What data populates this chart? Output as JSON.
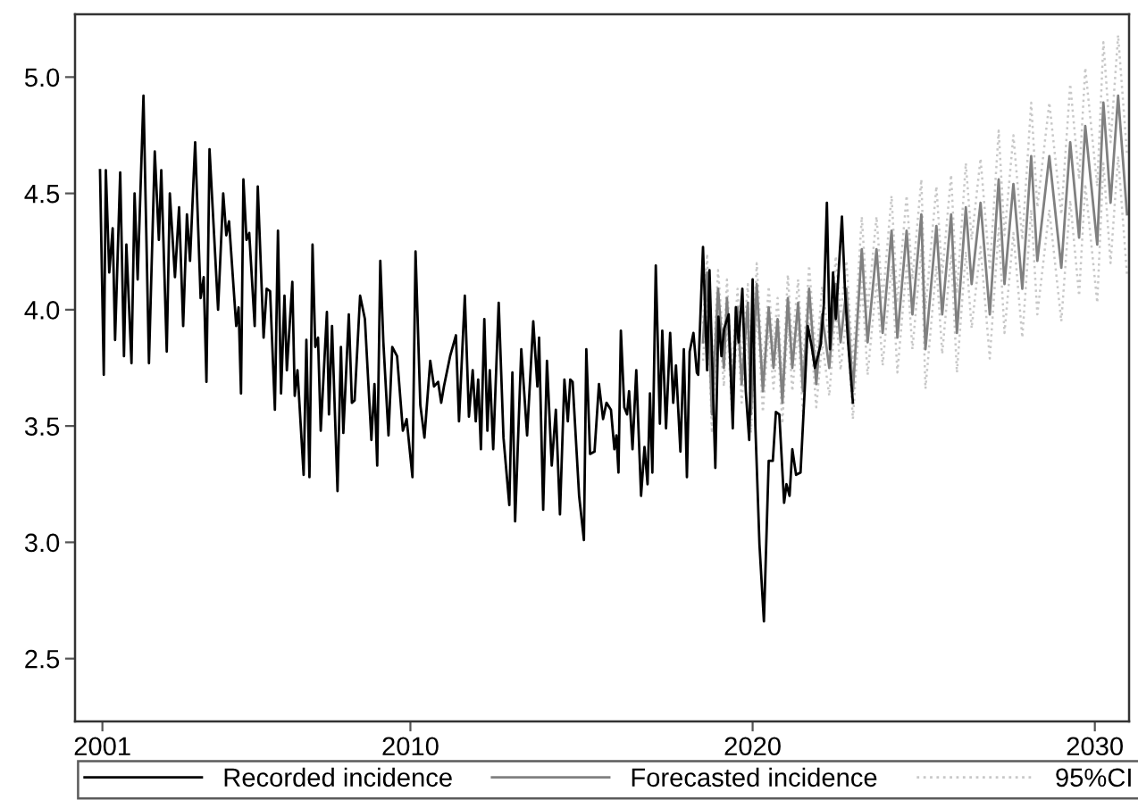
{
  "chart_data": {
    "type": "line",
    "xlim": [
      2000.2,
      2031.0
    ],
    "ylim": [
      2.23,
      5.27
    ],
    "xticks": [
      2001,
      2010,
      2020,
      2030
    ],
    "yticks": [
      {
        "value": 2.5,
        "label": "2.5"
      },
      {
        "value": 3,
        "label": "3.0"
      },
      {
        "value": 3.5,
        "label": "3.5"
      },
      {
        "value": 4,
        "label": "4.0"
      },
      {
        "value": 4.5,
        "label": "4.5"
      },
      {
        "value": 5,
        "label": "5.0"
      }
    ],
    "grid": false,
    "legend": "bottom",
    "marker": "none",
    "series": [
      {
        "name": "Recorded incidence",
        "color": "#000000",
        "line_style": "solid",
        "x": [
          2000.93,
          2001.04,
          2001.1,
          2001.2,
          2001.3,
          2001.37,
          2001.52,
          2001.63,
          2001.7,
          2001.85,
          2001.94,
          2002.03,
          2002.2,
          2002.36,
          2002.53,
          2002.65,
          2002.72,
          2002.88,
          2002.97,
          2003.12,
          2003.24,
          2003.36,
          2003.47,
          2003.56,
          2003.71,
          2003.87,
          2003.96,
          2004.04,
          2004.13,
          2004.38,
          2004.53,
          2004.62,
          2004.7,
          2004.91,
          2004.98,
          2005.05,
          2005.12,
          2005.21,
          2005.29,
          2005.45,
          2005.54,
          2005.71,
          2005.8,
          2005.9,
          2006.04,
          2006.13,
          2006.22,
          2006.32,
          2006.39,
          2006.55,
          2006.62,
          2006.7,
          2006.88,
          2006.96,
          2007.05,
          2007.14,
          2007.22,
          2007.3,
          2007.38,
          2007.56,
          2007.62,
          2007.71,
          2007.87,
          2007.97,
          2008.04,
          2008.2,
          2008.29,
          2008.37,
          2008.53,
          2008.67,
          2008.86,
          2008.95,
          2009.03,
          2009.12,
          2009.21,
          2009.36,
          2009.47,
          2009.61,
          2009.78,
          2009.89,
          2010.06,
          2010.15,
          2010.29,
          2010.41,
          2010.58,
          2010.69,
          2010.81,
          2010.9,
          2010.98,
          2011.16,
          2011.33,
          2011.42,
          2011.59,
          2011.71,
          2011.82,
          2011.91,
          2011.98,
          2012.06,
          2012.16,
          2012.25,
          2012.32,
          2012.42,
          2012.58,
          2012.72,
          2012.89,
          2012.98,
          2013.06,
          2013.24,
          2013.41,
          2013.59,
          2013.71,
          2013.76,
          2013.88,
          2013.99,
          2014.13,
          2014.25,
          2014.37,
          2014.5,
          2014.6,
          2014.67,
          2014.74,
          2014.93,
          2015.07,
          2015.14,
          2015.25,
          2015.38,
          2015.51,
          2015.63,
          2015.73,
          2015.86,
          2015.96,
          2016.02,
          2016.08,
          2016.15,
          2016.25,
          2016.33,
          2016.39,
          2016.49,
          2016.6,
          2016.74,
          2016.84,
          2016.93,
          2017.0,
          2017.07,
          2017.17,
          2017.29,
          2017.36,
          2017.47,
          2017.59,
          2017.68,
          2017.76,
          2017.89,
          2017.99,
          2018.08,
          2018.16,
          2018.27,
          2018.37,
          2018.41,
          2018.55,
          2018.67,
          2018.74,
          2018.91,
          2019.0,
          2019.09,
          2019.17,
          2019.3,
          2019.42,
          2019.51,
          2019.59,
          2019.7,
          2019.8,
          2019.9,
          2020.0,
          2020.08,
          2020.2,
          2020.33,
          2020.47,
          2020.59,
          2020.68,
          2020.78,
          2020.92,
          2020.99,
          2021.08,
          2021.16,
          2021.27,
          2021.4,
          2021.52,
          2021.61,
          2021.73,
          2021.82,
          2021.99,
          2022.08,
          2022.17,
          2022.26,
          2022.35,
          2022.43,
          2022.61,
          2022.7,
          2022.79,
          2022.93
        ],
        "values": [
          4.6,
          3.72,
          4.6,
          4.16,
          4.35,
          3.87,
          4.59,
          3.8,
          4.28,
          3.77,
          4.5,
          4.13,
          4.92,
          3.77,
          4.68,
          4.3,
          4.6,
          3.82,
          4.5,
          4.14,
          4.44,
          3.93,
          4.41,
          4.21,
          4.72,
          4.05,
          4.14,
          3.69,
          4.69,
          4.0,
          4.5,
          4.32,
          4.38,
          3.93,
          4.01,
          3.64,
          4.56,
          4.3,
          4.33,
          3.93,
          4.53,
          3.88,
          4.09,
          4.08,
          3.57,
          4.34,
          3.64,
          4.06,
          3.74,
          4.12,
          3.63,
          3.74,
          3.29,
          3.87,
          3.28,
          4.28,
          3.84,
          3.88,
          3.48,
          3.99,
          3.55,
          3.93,
          3.22,
          3.84,
          3.47,
          3.98,
          3.6,
          3.61,
          4.06,
          3.96,
          3.44,
          3.68,
          3.33,
          4.21,
          3.86,
          3.46,
          3.84,
          3.8,
          3.48,
          3.53,
          3.28,
          4.25,
          3.59,
          3.45,
          3.78,
          3.67,
          3.69,
          3.6,
          3.67,
          3.8,
          3.89,
          3.52,
          4.06,
          3.54,
          3.74,
          3.52,
          3.7,
          3.4,
          3.96,
          3.48,
          3.74,
          3.4,
          4.03,
          3.45,
          3.16,
          3.73,
          3.09,
          3.83,
          3.46,
          3.95,
          3.67,
          3.88,
          3.14,
          3.78,
          3.33,
          3.57,
          3.12,
          3.7,
          3.52,
          3.7,
          3.69,
          3.2,
          3.01,
          3.83,
          3.38,
          3.39,
          3.68,
          3.53,
          3.6,
          3.57,
          3.4,
          3.46,
          3.3,
          3.91,
          3.58,
          3.55,
          3.65,
          3.4,
          3.74,
          3.2,
          3.41,
          3.25,
          3.64,
          3.3,
          4.19,
          3.51,
          3.91,
          3.49,
          3.9,
          3.6,
          3.76,
          3.39,
          3.83,
          3.28,
          3.82,
          3.9,
          3.73,
          3.72,
          4.27,
          3.74,
          4.17,
          3.32,
          3.97,
          3.8,
          3.92,
          3.98,
          3.49,
          4.01,
          3.86,
          4.09,
          3.65,
          3.44,
          4.13,
          3.5,
          2.99,
          2.66,
          3.35,
          3.35,
          3.56,
          3.55,
          3.17,
          3.25,
          3.2,
          3.4,
          3.29,
          3.3,
          3.65,
          3.93,
          3.84,
          3.75,
          3.85,
          4.02,
          4.46,
          3.83,
          4.16,
          3.96,
          4.4,
          4.08,
          3.86,
          3.6
        ]
      },
      {
        "name": "Forecasted incidence",
        "color": "#808080",
        "line_style": "solid",
        "x": [
          2018.55,
          2018.67,
          2018.81,
          2018.99,
          2019.16,
          2019.25,
          2019.39,
          2019.56,
          2019.68,
          2019.86,
          2019.95,
          2020.12,
          2020.3,
          2020.47,
          2020.61,
          2020.73,
          2020.87,
          2021.03,
          2021.16,
          2021.33,
          2021.47,
          2021.65,
          2021.86,
          2022.03,
          2022.24,
          2022.43,
          2022.57,
          2022.74,
          2022.93,
          2023.19,
          2023.36,
          2023.62,
          2023.8,
          2024.06,
          2024.23,
          2024.5,
          2024.67,
          2024.93,
          2025.05,
          2025.37,
          2025.54,
          2025.8,
          2025.97,
          2026.23,
          2026.4,
          2026.66,
          2026.93,
          2027.19,
          2027.36,
          2027.62,
          2027.88,
          2028.14,
          2028.32,
          2028.67,
          2029.02,
          2029.28,
          2029.54,
          2029.72,
          2030.07,
          2030.25,
          2030.46,
          2030.68,
          2030.94
        ],
        "values": [
          3.86,
          4.16,
          3.55,
          4.09,
          3.75,
          4.05,
          3.65,
          4.01,
          3.68,
          4.03,
          3.55,
          4.11,
          3.65,
          4.01,
          3.75,
          3.96,
          3.6,
          4.05,
          3.75,
          4.03,
          3.65,
          4.09,
          3.68,
          3.98,
          3.75,
          4.11,
          3.86,
          4.09,
          3.65,
          4.26,
          3.86,
          4.26,
          3.9,
          4.34,
          3.88,
          4.34,
          3.98,
          4.41,
          3.83,
          4.36,
          3.98,
          4.41,
          3.9,
          4.44,
          4.11,
          4.46,
          3.98,
          4.56,
          4.11,
          4.54,
          4.09,
          4.66,
          4.21,
          4.66,
          4.18,
          4.72,
          4.31,
          4.79,
          4.28,
          4.89,
          4.46,
          4.92,
          4.41
        ]
      },
      {
        "name": "95%CI",
        "color": "#c8c8c8",
        "line_style": "dotted",
        "x": [
          2018.55,
          2018.67,
          2018.81,
          2018.99,
          2019.16,
          2019.25,
          2019.39,
          2019.56,
          2019.68,
          2019.86,
          2019.95,
          2020.12,
          2020.3,
          2020.47,
          2020.61,
          2020.73,
          2020.87,
          2021.03,
          2021.16,
          2021.33,
          2021.47,
          2021.65,
          2021.86,
          2022.03,
          2022.24,
          2022.43,
          2022.57,
          2022.74,
          2022.93,
          2023.19,
          2023.36,
          2023.62,
          2023.8,
          2024.06,
          2024.23,
          2024.5,
          2024.67,
          2024.93,
          2025.05,
          2025.37,
          2025.54,
          2025.8,
          2025.97,
          2026.23,
          2026.4,
          2026.66,
          2026.93,
          2027.19,
          2027.36,
          2027.62,
          2027.88,
          2028.14,
          2028.32,
          2028.67,
          2029.02,
          2029.28,
          2029.54,
          2029.72,
          2030.07,
          2030.25,
          2030.46,
          2030.68,
          2030.94
        ],
        "values": [
          3.94,
          4.24,
          3.63,
          4.17,
          3.83,
          4.13,
          3.73,
          4.09,
          3.76,
          4.11,
          3.63,
          4.2,
          3.74,
          4.1,
          3.84,
          4.05,
          3.69,
          4.15,
          3.85,
          4.13,
          3.75,
          4.19,
          3.78,
          4.1,
          3.87,
          4.23,
          3.98,
          4.21,
          3.77,
          4.4,
          4.0,
          4.4,
          4.04,
          4.49,
          4.03,
          4.49,
          4.13,
          4.56,
          4.0,
          4.53,
          4.15,
          4.58,
          4.07,
          4.63,
          4.3,
          4.65,
          4.17,
          4.77,
          4.32,
          4.75,
          4.3,
          4.89,
          4.44,
          4.89,
          4.41,
          4.97,
          4.56,
          5.04,
          4.53,
          5.15,
          4.72,
          5.18,
          4.67
        ]
      },
      {
        "color": "#c8c8c8",
        "line_style": "dotted",
        "x": [
          2018.55,
          2018.67,
          2018.81,
          2018.99,
          2019.16,
          2019.25,
          2019.39,
          2019.56,
          2019.68,
          2019.86,
          2019.95,
          2020.12,
          2020.3,
          2020.47,
          2020.61,
          2020.73,
          2020.87,
          2021.03,
          2021.16,
          2021.33,
          2021.47,
          2021.65,
          2021.86,
          2022.03,
          2022.24,
          2022.43,
          2022.57,
          2022.74,
          2022.93,
          2023.19,
          2023.36,
          2023.62,
          2023.8,
          2024.06,
          2024.23,
          2024.5,
          2024.67,
          2024.93,
          2025.05,
          2025.37,
          2025.54,
          2025.8,
          2025.97,
          2026.23,
          2026.4,
          2026.66,
          2026.93,
          2027.19,
          2027.36,
          2027.62,
          2027.88,
          2028.14,
          2028.32,
          2028.67,
          2029.02,
          2029.28,
          2029.54,
          2029.72,
          2030.07,
          2030.25,
          2030.46,
          2030.68,
          2030.94
        ],
        "values": [
          3.78,
          4.08,
          3.47,
          4.01,
          3.67,
          3.97,
          3.57,
          3.93,
          3.6,
          3.95,
          3.47,
          4.02,
          3.56,
          3.92,
          3.66,
          3.87,
          3.51,
          3.95,
          3.65,
          3.93,
          3.55,
          3.99,
          3.58,
          3.86,
          3.63,
          3.99,
          3.74,
          3.97,
          3.53,
          4.12,
          3.72,
          4.12,
          3.76,
          4.19,
          3.73,
          4.19,
          3.83,
          4.26,
          3.66,
          4.19,
          3.81,
          4.24,
          3.73,
          4.25,
          3.92,
          4.27,
          3.79,
          4.35,
          3.9,
          4.33,
          3.88,
          4.43,
          3.98,
          4.43,
          3.95,
          4.47,
          4.06,
          4.54,
          4.03,
          4.63,
          4.2,
          4.66,
          4.15
        ]
      }
    ]
  }
}
